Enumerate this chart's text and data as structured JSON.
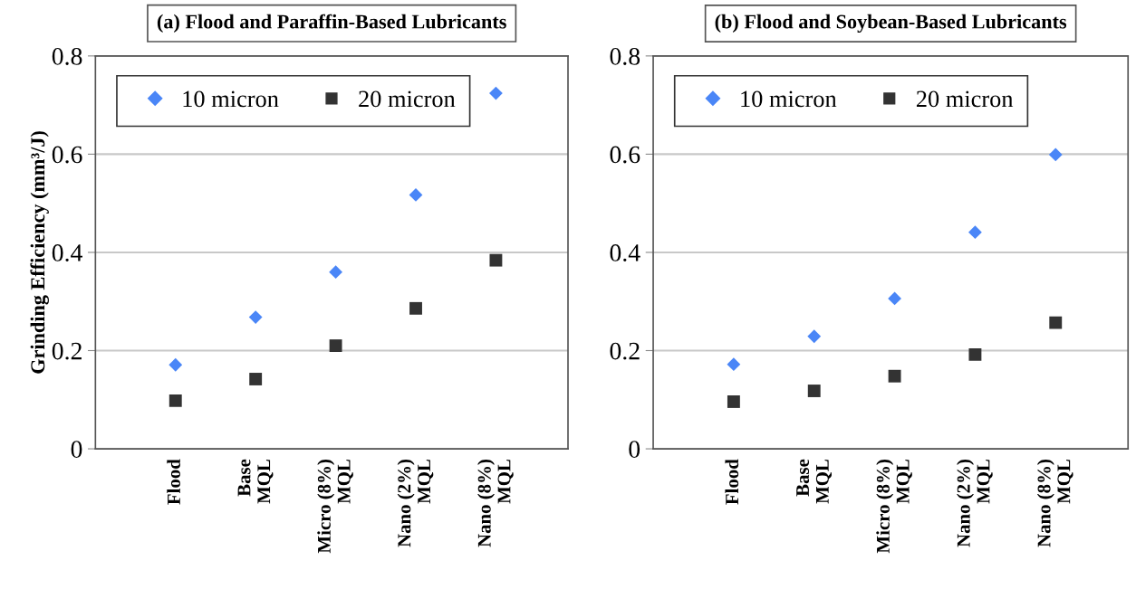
{
  "chart_data": [
    {
      "type": "scatter",
      "title": "(a) Flood and Paraffin-Based Lubricants",
      "ylabel": "Grinding Efficiency (mm³/J)",
      "categories": [
        "Flood",
        "Base\nMQL",
        "Micro (8%)\nMQL",
        "Nano (2%)\nMQL",
        "Nano (8%)\nMQL"
      ],
      "series": [
        {
          "name": "10 micron",
          "color": "#4a86f7",
          "marker": "diamond",
          "values": [
            0.171,
            0.268,
            0.36,
            0.517,
            0.724
          ]
        },
        {
          "name": "20 micron",
          "color": "#333333",
          "marker": "square",
          "values": [
            0.098,
            0.142,
            0.21,
            0.286,
            0.384
          ]
        }
      ],
      "ylim": [
        0,
        0.8
      ],
      "yticks": [
        0,
        0.2,
        0.4,
        0.6,
        0.8
      ],
      "grid": "y",
      "legend": "top left"
    },
    {
      "type": "scatter",
      "title": "(b) Flood and Soybean-Based Lubricants",
      "categories": [
        "Flood",
        "Base\nMQL",
        "Micro (8%)\nMQL",
        "Nano (2%)\nMQL",
        "Nano (8%)\nMQL"
      ],
      "series": [
        {
          "name": "10 micron",
          "color": "#4a86f7",
          "marker": "diamond",
          "values": [
            0.172,
            0.229,
            0.306,
            0.441,
            0.599
          ]
        },
        {
          "name": "20 micron",
          "color": "#333333",
          "marker": "square",
          "values": [
            0.096,
            0.118,
            0.148,
            0.192,
            0.257
          ]
        }
      ],
      "ylim": [
        0,
        0.8
      ],
      "yticks": [
        0,
        0.2,
        0.4,
        0.6,
        0.8
      ],
      "grid": "y",
      "legend": "top left"
    }
  ]
}
